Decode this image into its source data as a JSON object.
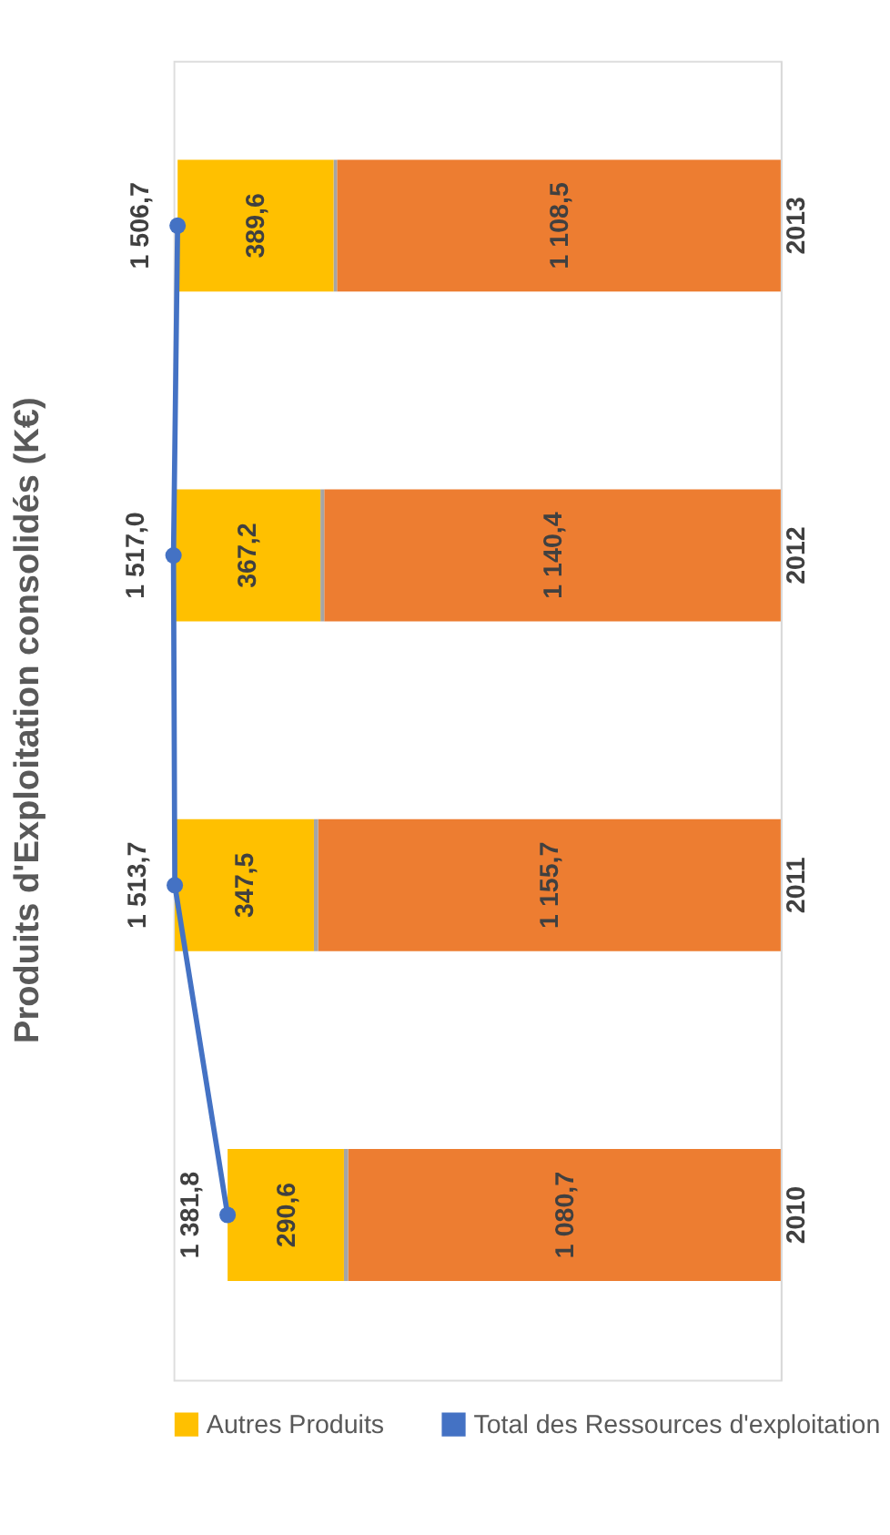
{
  "chart_data": {
    "type": "bar",
    "orientation": "horizontal",
    "title": "Produits d'Exploitation consolidés (K€)",
    "categories": [
      "2013",
      "2012",
      "2011",
      "2010"
    ],
    "stacked": true,
    "tick_labels": "y",
    "legend": "bottom",
    "grid": false,
    "series": [
      {
        "color": "#ed7d31",
        "values": [
          1108.5,
          1140.4,
          1155.7,
          1080.7
        ],
        "value_labels": [
          "1 108,5",
          "1 140,4",
          "1 155,7",
          "1 080,7"
        ]
      },
      {
        "color": "#a5a5a5",
        "values": [
          8.6,
          9.4,
          10.5,
          10.5
        ],
        "value_labels": [
          null,
          null,
          null,
          null
        ]
      },
      {
        "name": "Autres Produits",
        "color": "#ffc000",
        "values": [
          389.6,
          367.2,
          347.5,
          290.6
        ],
        "value_labels": [
          "389,6",
          "367,2",
          "347,5",
          "290,6"
        ]
      },
      {
        "name": "Total des Ressources d'exploitation",
        "type": "line",
        "marker": "circle",
        "color": "#4472c4",
        "values": [
          1506.7,
          1517.0,
          1513.7,
          1381.8
        ],
        "value_labels": [
          "1 506,7",
          "1 517,0",
          "1 513,7",
          "1 381,8"
        ]
      }
    ]
  }
}
